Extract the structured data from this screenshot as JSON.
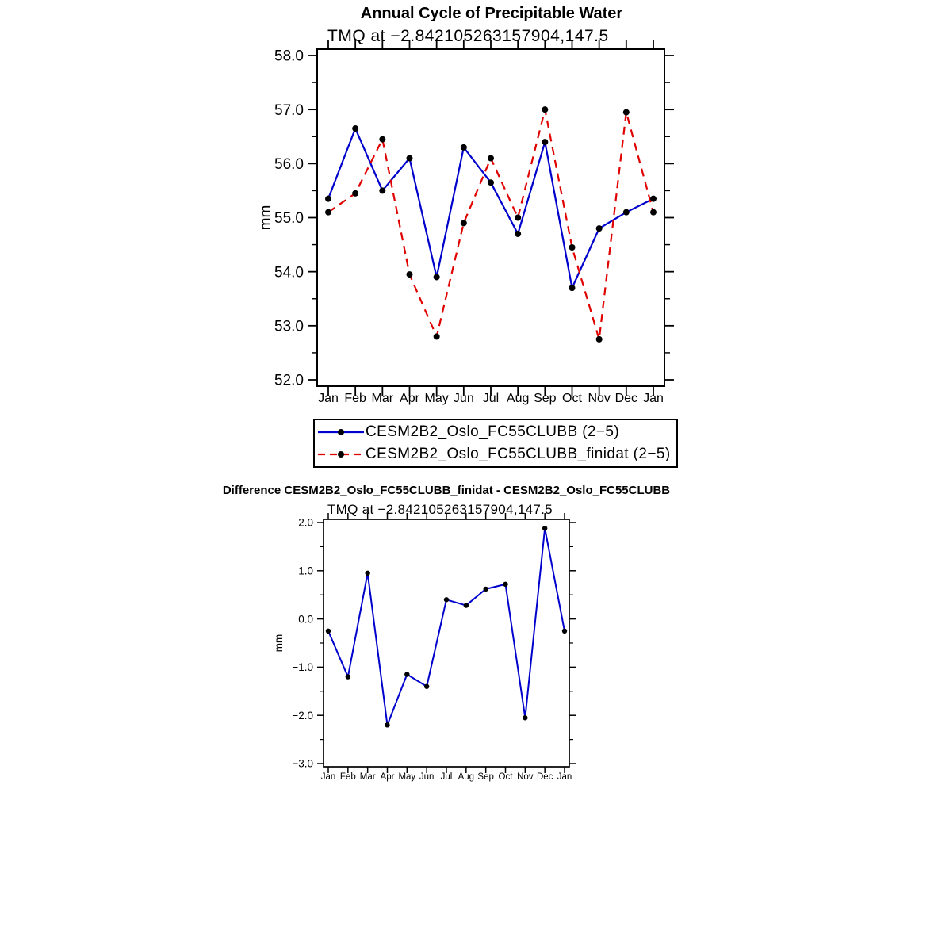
{
  "page": {
    "background": "#ffffff"
  },
  "chart_data": [
    {
      "type": "line",
      "title": "Annual Cycle of Precipitable Water",
      "subtitle": "TMQ at −2.842105263157904,147.5",
      "ylabel": "mm",
      "xlabel": "",
      "categories": [
        "Jan",
        "Feb",
        "Mar",
        "Apr",
        "May",
        "Jun",
        "Jul",
        "Aug",
        "Sep",
        "Oct",
        "Nov",
        "Dec",
        "Jan"
      ],
      "ylim": [
        52.0,
        58.0
      ],
      "yticks": [
        52,
        53,
        54,
        55,
        56,
        57,
        58
      ],
      "ytick_labels": [
        "52.0",
        "53.0",
        "54.0",
        "55.0",
        "56.0",
        "57.0",
        "58.0"
      ],
      "grid": false,
      "legend_position": "below",
      "series": [
        {
          "name": "CESM2B2_Oslo_FC55CLUBB (2−5)",
          "color": "#0000cd",
          "style": "solid",
          "marker": "filled-circle",
          "marker_color": "#000000",
          "values": [
            55.35,
            56.65,
            55.5,
            56.1,
            53.9,
            56.3,
            55.65,
            54.7,
            56.4,
            53.7,
            54.8,
            55.1,
            55.35
          ]
        },
        {
          "name": "CESM2B2_Oslo_FC55CLUBB_finidat (2−5)",
          "color": "#e00000",
          "style": "dashed",
          "marker": "filled-circle",
          "marker_color": "#000000",
          "values": [
            55.1,
            55.45,
            56.45,
            53.95,
            52.8,
            54.9,
            56.1,
            55.0,
            57.0,
            54.45,
            52.75,
            56.95,
            55.1
          ]
        }
      ]
    },
    {
      "type": "line",
      "title": "Difference CESM2B2_Oslo_FC55CLUBB_finidat - CESM2B2_Oslo_FC55CLUBB",
      "subtitle": "TMQ at −2.842105263157904,147.5",
      "ylabel": "mm",
      "xlabel": "",
      "categories": [
        "Jan",
        "Feb",
        "Mar",
        "Apr",
        "May",
        "Jun",
        "Jul",
        "Aug",
        "Sep",
        "Oct",
        "Nov",
        "Dec",
        "Jan"
      ],
      "ylim": [
        -3.0,
        2.0
      ],
      "yticks": [
        -3,
        -2,
        -1,
        0,
        1,
        2
      ],
      "ytick_labels": [
        "−3.0",
        "−2.0",
        "−1.0",
        "0.0",
        "1.0",
        "2.0"
      ],
      "grid": false,
      "legend_position": "none",
      "series": [
        {
          "name": "CESM2B2_Oslo_FC55CLUBB_finidat - CESM2B2_Oslo_FC55CLUBB",
          "color": "#0000cd",
          "style": "solid",
          "marker": "filled-circle",
          "marker_color": "#000000",
          "values": [
            -0.25,
            -1.2,
            0.95,
            -2.2,
            -1.15,
            -1.4,
            0.4,
            0.28,
            0.62,
            0.72,
            -2.05,
            1.88,
            -0.25
          ]
        }
      ]
    }
  ]
}
